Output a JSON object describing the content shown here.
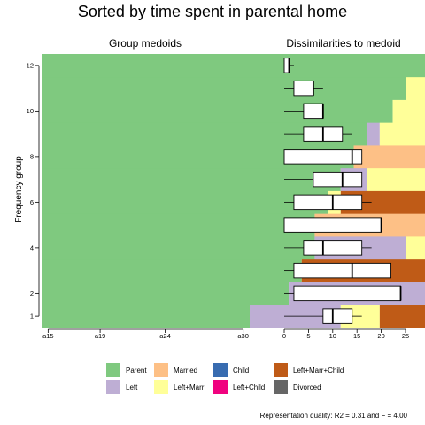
{
  "chart_data": [
    {
      "type": "stacked-sequence",
      "title": "Sorted by time spent in parental home",
      "subtitle": "Group medoids",
      "ylabel": "Frequency group",
      "x_ticks": [
        "a15",
        "a19",
        "a24",
        "a30"
      ],
      "x_tick_ages": [
        15,
        19,
        24,
        30
      ],
      "age_range": [
        15,
        30
      ],
      "y_ticks": [
        1,
        2,
        4,
        6,
        8,
        10,
        12
      ],
      "n_groups": 12,
      "states": [
        {
          "name": "Parent",
          "color": "#7fc97f"
        },
        {
          "name": "Left",
          "color": "#beaed4"
        },
        {
          "name": "Married",
          "color": "#fdc086"
        },
        {
          "name": "Left+Marr",
          "color": "#ffff99"
        },
        {
          "name": "Child",
          "color": "#386cb0"
        },
        {
          "name": "Left+Child",
          "color": "#f0027f"
        },
        {
          "name": "Left+Marr+Child",
          "color": "#bf5b17"
        },
        {
          "name": "Divorced",
          "color": "#666666"
        }
      ],
      "medoids": [
        {
          "group": 1,
          "spells": [
            [
              "Parent",
              16
            ],
            [
              "Left",
              7
            ],
            [
              "Left+Marr",
              3
            ],
            [
              "Left+Marr+Child",
              5
            ]
          ]
        },
        {
          "group": 2,
          "spells": [
            [
              "Parent",
              19
            ],
            [
              "Left",
              12
            ]
          ]
        },
        {
          "group": 3,
          "spells": [
            [
              "Parent",
              20
            ],
            [
              "Left+Marr+Child",
              11
            ]
          ]
        },
        {
          "group": 4,
          "spells": [
            [
              "Parent",
              21
            ],
            [
              "Left",
              7
            ],
            [
              "Left+Marr",
              2
            ],
            [
              "Left+Marr+Child",
              1
            ]
          ]
        },
        {
          "group": 5,
          "spells": [
            [
              "Parent",
              21
            ],
            [
              "Married",
              10
            ]
          ]
        },
        {
          "group": 6,
          "spells": [
            [
              "Parent",
              22
            ],
            [
              "Left+Marr",
              1
            ],
            [
              "Left+Marr+Child",
              8
            ]
          ]
        },
        {
          "group": 7,
          "spells": [
            [
              "Parent",
              23
            ],
            [
              "Left",
              2
            ],
            [
              "Left+Marr",
              5
            ],
            [
              "Left+Marr+Child",
              1
            ]
          ]
        },
        {
          "group": 8,
          "spells": [
            [
              "Parent",
              24
            ],
            [
              "Married",
              7
            ]
          ]
        },
        {
          "group": 9,
          "spells": [
            [
              "Parent",
              25
            ],
            [
              "Left",
              1
            ],
            [
              "Left+Marr",
              5
            ]
          ]
        },
        {
          "group": 10,
          "spells": [
            [
              "Parent",
              27
            ],
            [
              "Left+Marr",
              3
            ],
            [
              "Left+Marr+Child",
              1
            ]
          ]
        },
        {
          "group": 11,
          "spells": [
            [
              "Parent",
              28
            ],
            [
              "Left+Marr",
              2
            ],
            [
              "Left+Marr+Child",
              1
            ]
          ]
        },
        {
          "group": 12,
          "spells": [
            [
              "Parent",
              31
            ]
          ]
        }
      ]
    },
    {
      "type": "boxplot",
      "subtitle": "Dissimilarities to medoid",
      "x_ticks": [
        0,
        5,
        10,
        15,
        20,
        25
      ],
      "xlim": [
        0,
        25
      ],
      "boxes": [
        {
          "group": 1,
          "whisker_low": 0,
          "q1": 8,
          "median": 10,
          "q3": 14,
          "whisker_high": 16
        },
        {
          "group": 2,
          "whisker_low": 0,
          "q1": 2,
          "median": 24,
          "q3": 24,
          "whisker_high": 24
        },
        {
          "group": 3,
          "whisker_low": 0,
          "q1": 2,
          "median": 14,
          "q3": 22,
          "whisker_high": 22
        },
        {
          "group": 4,
          "whisker_low": 0,
          "q1": 4,
          "median": 8,
          "q3": 16,
          "whisker_high": 18
        },
        {
          "group": 5,
          "whisker_low": 0,
          "q1": 0,
          "median": 20,
          "q3": 20,
          "whisker_high": 20
        },
        {
          "group": 6,
          "whisker_low": 0,
          "q1": 2,
          "median": 10,
          "q3": 16,
          "whisker_high": 18
        },
        {
          "group": 7,
          "whisker_low": 0,
          "q1": 6,
          "median": 12,
          "q3": 16,
          "whisker_high": 16
        },
        {
          "group": 8,
          "whisker_low": 0,
          "q1": 0,
          "median": 14,
          "q3": 16,
          "whisker_high": 16
        },
        {
          "group": 9,
          "whisker_low": 0,
          "q1": 4,
          "median": 8,
          "q3": 12,
          "whisker_high": 14
        },
        {
          "group": 10,
          "whisker_low": 0,
          "q1": 4,
          "median": 8,
          "q3": 8,
          "whisker_high": 8
        },
        {
          "group": 11,
          "whisker_low": 0,
          "q1": 2,
          "median": 6,
          "q3": 6,
          "whisker_high": 8
        },
        {
          "group": 12,
          "whisker_low": 0,
          "q1": 0,
          "median": 1,
          "q3": 1,
          "whisker_high": 2
        }
      ]
    }
  ],
  "legend_items": [
    "Parent",
    "Married",
    "Child",
    "Left+Marr+Child",
    "Left",
    "Left+Marr",
    "Left+Child",
    "Divorced"
  ],
  "footer": "Representation quality: R2 = 0.31 and F = 4.00"
}
